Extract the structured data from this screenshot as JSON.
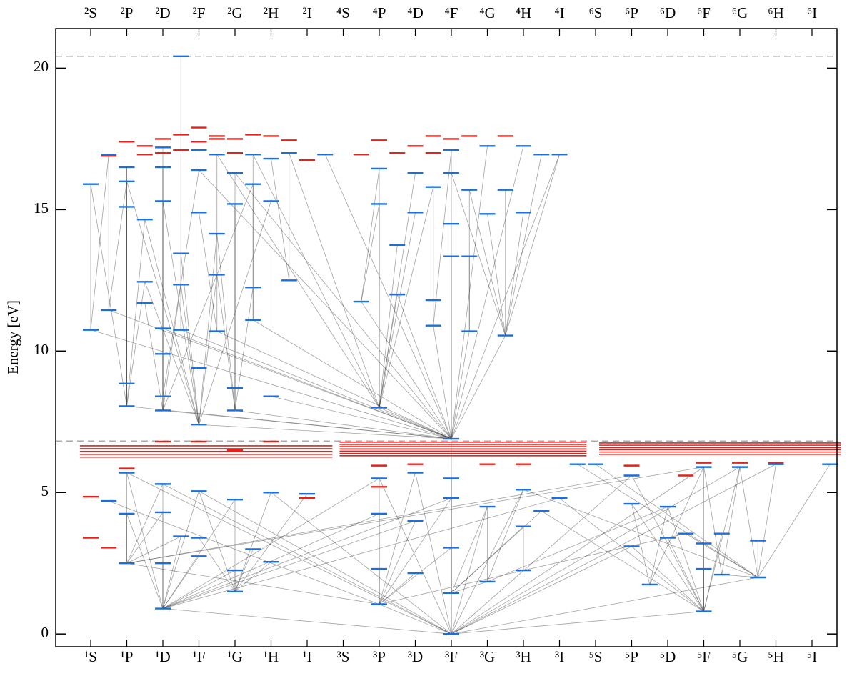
{
  "chart_data": {
    "type": "level-diagram",
    "ylabel": "Energy [eV]",
    "ylim": [
      -0.45,
      21.4
    ],
    "yticks": [
      0,
      5,
      10,
      15,
      20
    ],
    "top_terms": [
      "²S",
      "²P",
      "²D",
      "²F",
      "²G",
      "²H",
      "²I",
      "⁴S",
      "⁴P",
      "⁴D",
      "⁴F",
      "⁴G",
      "⁴H",
      "⁴I",
      "⁶S",
      "⁶P",
      "⁶D",
      "⁶F",
      "⁶G",
      "⁶H",
      "⁶I"
    ],
    "bottom_terms": [
      "¹S",
      "¹P",
      "¹D",
      "¹F",
      "¹G",
      "¹H",
      "¹I",
      "³S",
      "³P",
      "³D",
      "³F",
      "³G",
      "³H",
      "³I",
      "⁵S",
      "⁵P",
      "⁵D",
      "⁵F",
      "⁵G",
      "⁵H",
      "⁵I"
    ],
    "reference_lines": {
      "color": "#aaaaaa",
      "energies": [
        20.42,
        6.82
      ]
    },
    "blue_levels": {
      "color": "#1a6fe0",
      "position": [
        0,
        0,
        0.5,
        0.5,
        0.5,
        1,
        1,
        1,
        1,
        1,
        1,
        1,
        1,
        1.5,
        1.5,
        1.5,
        2,
        2,
        2,
        2,
        2,
        2,
        2,
        2,
        2,
        2,
        2,
        2.5,
        2.5,
        2.5,
        2.5,
        2.5,
        3,
        3,
        3,
        3,
        3,
        3,
        3,
        3,
        3.5,
        3.5,
        3.5,
        3.5,
        4,
        4,
        4,
        4,
        4,
        4,
        4,
        4.5,
        4.5,
        4.5,
        4.5,
        4.5,
        5,
        5,
        5,
        5,
        5,
        5.5,
        5.5,
        6.5,
        6,
        7.5,
        8,
        8,
        8,
        8,
        8,
        8,
        8,
        8.5,
        8.5,
        9,
        9,
        9,
        9,
        9,
        9.5,
        9.5,
        9.5,
        10,
        10,
        10,
        10,
        10,
        10,
        10,
        10,
        10,
        10,
        10.5,
        10.5,
        10.5,
        11,
        11,
        11,
        11,
        11.5,
        11.5,
        12,
        12,
        12,
        12,
        12,
        12.5,
        12.5,
        13,
        13,
        13.5,
        14,
        15,
        15,
        15,
        15.5,
        16,
        16,
        16.5,
        17,
        17,
        17,
        17,
        17.5,
        17.5,
        18,
        18.5,
        18.5,
        19,
        20.5
      ],
      "energy": [
        10.75,
        15.9,
        11.45,
        16.95,
        4.7,
        8.05,
        8.85,
        15.1,
        16.0,
        16.5,
        2.5,
        4.25,
        5.7,
        14.65,
        12.45,
        11.7,
        7.9,
        8.4,
        9.9,
        10.8,
        15.3,
        16.5,
        17.2,
        0.9,
        2.5,
        4.3,
        5.3,
        13.45,
        10.75,
        12.35,
        3.45,
        20.42,
        7.4,
        9.4,
        14.9,
        16.4,
        17.1,
        2.75,
        3.4,
        5.05,
        14.15,
        12.7,
        10.7,
        16.95,
        7.9,
        8.7,
        15.2,
        16.3,
        1.5,
        2.25,
        4.75,
        11.1,
        12.25,
        15.9,
        16.95,
        3.0,
        8.4,
        15.3,
        16.8,
        2.55,
        5.0,
        12.5,
        17.0,
        16.95,
        4.95,
        11.75,
        8.0,
        15.2,
        16.45,
        1.05,
        2.3,
        4.25,
        5.5,
        13.75,
        12.0,
        14.9,
        16.3,
        2.15,
        4.0,
        5.7,
        11.8,
        10.9,
        15.8,
        6.9,
        13.35,
        14.5,
        16.3,
        17.1,
        0.0,
        1.45,
        3.05,
        4.8,
        5.5,
        10.7,
        13.35,
        15.7,
        14.85,
        17.25,
        1.85,
        4.5,
        10.55,
        15.7,
        14.9,
        17.25,
        2.25,
        3.8,
        5.1,
        16.95,
        4.35,
        4.8,
        16.95,
        6.0,
        6.0,
        3.1,
        4.6,
        5.6,
        1.75,
        4.5,
        3.4,
        3.55,
        0.8,
        2.3,
        5.9,
        3.2,
        2.1,
        3.55,
        5.9,
        2.0,
        3.3,
        6.0,
        6.0
      ]
    },
    "red_levels": {
      "color": "#e8201a",
      "position": [
        0,
        0,
        0.5,
        0.5,
        1,
        1,
        1.5,
        1.5,
        2,
        2,
        2,
        2.5,
        2.5,
        3,
        3,
        3,
        3.5,
        3.5,
        4,
        4,
        4,
        4.5,
        5,
        5,
        5.5,
        6,
        6,
        8,
        7.5,
        8.5,
        9,
        9.5,
        9.5,
        10,
        10.5,
        11.5,
        8,
        8,
        9,
        11,
        12,
        16.5,
        15,
        17,
        18,
        19
      ],
      "energy": [
        4.85,
        3.4,
        16.9,
        3.05,
        17.4,
        5.85,
        17.25,
        16.95,
        17.5,
        17.0,
        6.8,
        17.1,
        17.65,
        17.9,
        17.4,
        6.8,
        17.6,
        17.5,
        17.5,
        17.0,
        6.5,
        17.65,
        17.6,
        6.8,
        17.45,
        16.75,
        4.8,
        17.45,
        16.95,
        17.0,
        17.25,
        17.6,
        17.0,
        17.5,
        17.6,
        17.6,
        5.95,
        5.2,
        6.0,
        6.0,
        6.0,
        5.6,
        5.95,
        6.05,
        6.05,
        6.05
      ]
    },
    "red_bands": [
      {
        "from": -0.3,
        "to": 6.7,
        "energies": [
          6.25,
          6.35,
          6.45,
          6.55,
          6.65
        ]
      },
      {
        "from": 6.9,
        "to": 13.75,
        "energies": [
          6.3,
          6.38,
          6.46,
          6.54,
          6.62,
          6.7,
          6.78
        ]
      },
      {
        "from": 14.1,
        "to": 20.8,
        "energies": [
          6.35,
          6.43,
          6.51,
          6.59,
          6.67,
          6.75
        ]
      }
    ],
    "transitions": [
      [
        88,
        83
      ],
      [
        88,
        69
      ],
      [
        88,
        23
      ],
      [
        88,
        120
      ],
      [
        88,
        127
      ],
      [
        88,
        113
      ],
      [
        88,
        92
      ],
      [
        88,
        99
      ],
      [
        88,
        106
      ],
      [
        88,
        79
      ],
      [
        88,
        26
      ],
      [
        88,
        39
      ],
      [
        88,
        12
      ],
      [
        88,
        115
      ],
      [
        88,
        122
      ],
      [
        88,
        126
      ],
      [
        88,
        129
      ],
      [
        88,
        72
      ],
      [
        88,
        60
      ],
      [
        83,
        66
      ],
      [
        83,
        5
      ],
      [
        83,
        16
      ],
      [
        83,
        32
      ],
      [
        83,
        44
      ],
      [
        83,
        56
      ],
      [
        83,
        100
      ],
      [
        83,
        93
      ],
      [
        83,
        81
      ],
      [
        83,
        65
      ],
      [
        83,
        0
      ],
      [
        83,
        2
      ],
      [
        83,
        28
      ],
      [
        83,
        42
      ],
      [
        83,
        19
      ],
      [
        83,
        51
      ],
      [
        83,
        74
      ],
      [
        83,
        84
      ],
      [
        83,
        87
      ],
      [
        83,
        97
      ],
      [
        83,
        103
      ],
      [
        83,
        110
      ],
      [
        83,
        63
      ],
      [
        83,
        47
      ],
      [
        83,
        35
      ],
      [
        32,
        33
      ],
      [
        32,
        34
      ],
      [
        32,
        35
      ],
      [
        32,
        36
      ],
      [
        32,
        27
      ],
      [
        32,
        29
      ],
      [
        32,
        40
      ],
      [
        32,
        41
      ],
      [
        32,
        13
      ],
      [
        32,
        14
      ],
      [
        32,
        20
      ],
      [
        32,
        57
      ],
      [
        32,
        8
      ],
      [
        16,
        18
      ],
      [
        16,
        19
      ],
      [
        16,
        20
      ],
      [
        16,
        21
      ],
      [
        16,
        22
      ],
      [
        16,
        29
      ],
      [
        16,
        15
      ],
      [
        16,
        53
      ],
      [
        5,
        6
      ],
      [
        5,
        7
      ],
      [
        5,
        8
      ],
      [
        5,
        9
      ],
      [
        5,
        1
      ],
      [
        5,
        13
      ],
      [
        5,
        14
      ],
      [
        66,
        67
      ],
      [
        66,
        68
      ],
      [
        66,
        73
      ],
      [
        66,
        74
      ],
      [
        66,
        75
      ],
      [
        66,
        76
      ],
      [
        66,
        82
      ],
      [
        66,
        43
      ],
      [
        66,
        54
      ],
      [
        66,
        62
      ],
      [
        100,
        101
      ],
      [
        100,
        107
      ],
      [
        100,
        110
      ],
      [
        100,
        96
      ],
      [
        100,
        102
      ],
      [
        100,
        95
      ],
      [
        100,
        86
      ],
      [
        44,
        45
      ],
      [
        44,
        46
      ],
      [
        44,
        47
      ],
      [
        44,
        40
      ],
      [
        44,
        41
      ],
      [
        44,
        52
      ],
      [
        23,
        24
      ],
      [
        23,
        25
      ],
      [
        23,
        26
      ],
      [
        23,
        11
      ],
      [
        23,
        12
      ],
      [
        23,
        30
      ],
      [
        23,
        37
      ],
      [
        23,
        39
      ],
      [
        23,
        49
      ],
      [
        23,
        50
      ],
      [
        23,
        71
      ],
      [
        23,
        72
      ],
      [
        23,
        78
      ],
      [
        23,
        91
      ],
      [
        23,
        109
      ],
      [
        69,
        70
      ],
      [
        69,
        71
      ],
      [
        69,
        72
      ],
      [
        69,
        77
      ],
      [
        69,
        78
      ],
      [
        69,
        79
      ],
      [
        69,
        90
      ],
      [
        69,
        91
      ],
      [
        69,
        104
      ],
      [
        69,
        10
      ],
      [
        69,
        4
      ],
      [
        120,
        121
      ],
      [
        120,
        122
      ],
      [
        120,
        123
      ],
      [
        120,
        113
      ],
      [
        120,
        114
      ],
      [
        120,
        115
      ],
      [
        120,
        117
      ],
      [
        120,
        118
      ],
      [
        120,
        125
      ],
      [
        120,
        126
      ],
      [
        120,
        109
      ],
      [
        120,
        108
      ],
      [
        127,
        128
      ],
      [
        127,
        129
      ],
      [
        127,
        130
      ],
      [
        127,
        126
      ],
      [
        127,
        124
      ],
      [
        127,
        119
      ],
      [
        127,
        111
      ],
      [
        127,
        112
      ],
      [
        127,
        106
      ],
      [
        89,
        90
      ],
      [
        89,
        91
      ],
      [
        89,
        92
      ],
      [
        89,
        105
      ],
      [
        89,
        108
      ],
      [
        89,
        98
      ],
      [
        89,
        99
      ],
      [
        48,
        49
      ],
      [
        48,
        50
      ],
      [
        48,
        59
      ],
      [
        48,
        60
      ],
      [
        48,
        55
      ],
      [
        48,
        38
      ],
      [
        48,
        39
      ],
      [
        48,
        64
      ],
      [
        10,
        11
      ],
      [
        10,
        12
      ],
      [
        10,
        25
      ],
      [
        10,
        26
      ],
      [
        10,
        30
      ],
      [
        10,
        115
      ],
      [
        10,
        122
      ],
      [
        98,
        99
      ],
      [
        98,
        106
      ],
      [
        98,
        117
      ],
      [
        104,
        105
      ],
      [
        104,
        119
      ],
      [
        116,
        114
      ],
      [
        116,
        117
      ],
      [
        116,
        122
      ],
      [
        124,
        122
      ],
      [
        124,
        126
      ],
      [
        0,
        1
      ],
      [
        0,
        3
      ],
      [
        2,
        3
      ],
      [
        2,
        8
      ],
      [
        28,
        27
      ],
      [
        28,
        31
      ],
      [
        42,
        43
      ],
      [
        42,
        34
      ],
      [
        51,
        53
      ],
      [
        51,
        54
      ],
      [
        61,
        62
      ],
      [
        61,
        58
      ],
      [
        65,
        68
      ],
      [
        65,
        67
      ],
      [
        93,
        94
      ],
      [
        93,
        95
      ],
      [
        81,
        82
      ],
      [
        81,
        87
      ],
      [
        56,
        57
      ],
      [
        56,
        58
      ],
      [
        17,
        21
      ],
      [
        17,
        35
      ],
      [
        45,
        46
      ],
      [
        33,
        34
      ],
      [
        6,
        9
      ]
    ]
  }
}
